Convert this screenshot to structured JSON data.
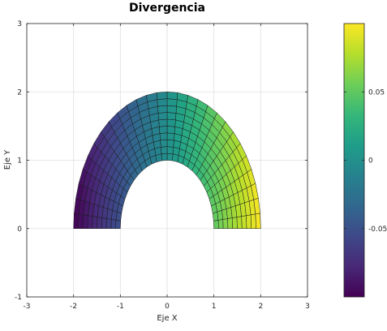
{
  "chart_data": {
    "type": "heatmap",
    "title": "Divergencia",
    "xlabel": "Eje X",
    "ylabel": "Eje Y",
    "xlim": [
      -3,
      3
    ],
    "ylim": [
      -1,
      3
    ],
    "xticks": [
      "-3",
      "-2",
      "-1",
      "0",
      "1",
      "2",
      "3"
    ],
    "yticks": [
      "-1",
      "0",
      "1",
      "2",
      "3"
    ],
    "grid": true,
    "domain": {
      "shape": "half-annulus",
      "inner_radius": 1,
      "outer_radius": 2,
      "theta_range_deg": [
        0,
        180
      ],
      "radial_divisions": 10,
      "angular_divisions": 28
    },
    "color_field": "proportional to x",
    "colormap": "viridis",
    "colorbar": {
      "range": [
        -0.1,
        0.1
      ],
      "tick_values": [
        -0.05,
        0,
        0.05
      ],
      "tick_labels": [
        "-0.05",
        "0",
        "0.05"
      ],
      "position": "right"
    },
    "colors": {
      "viridis": [
        "#440154",
        "#482878",
        "#3e4989",
        "#31688e",
        "#26828e",
        "#1f9e89",
        "#35b779",
        "#6ece58",
        "#b5de2b",
        "#fde725"
      ],
      "grid": "#e0e0e0",
      "axis": "#262626",
      "cell_edge": "#1a1a1a"
    }
  }
}
